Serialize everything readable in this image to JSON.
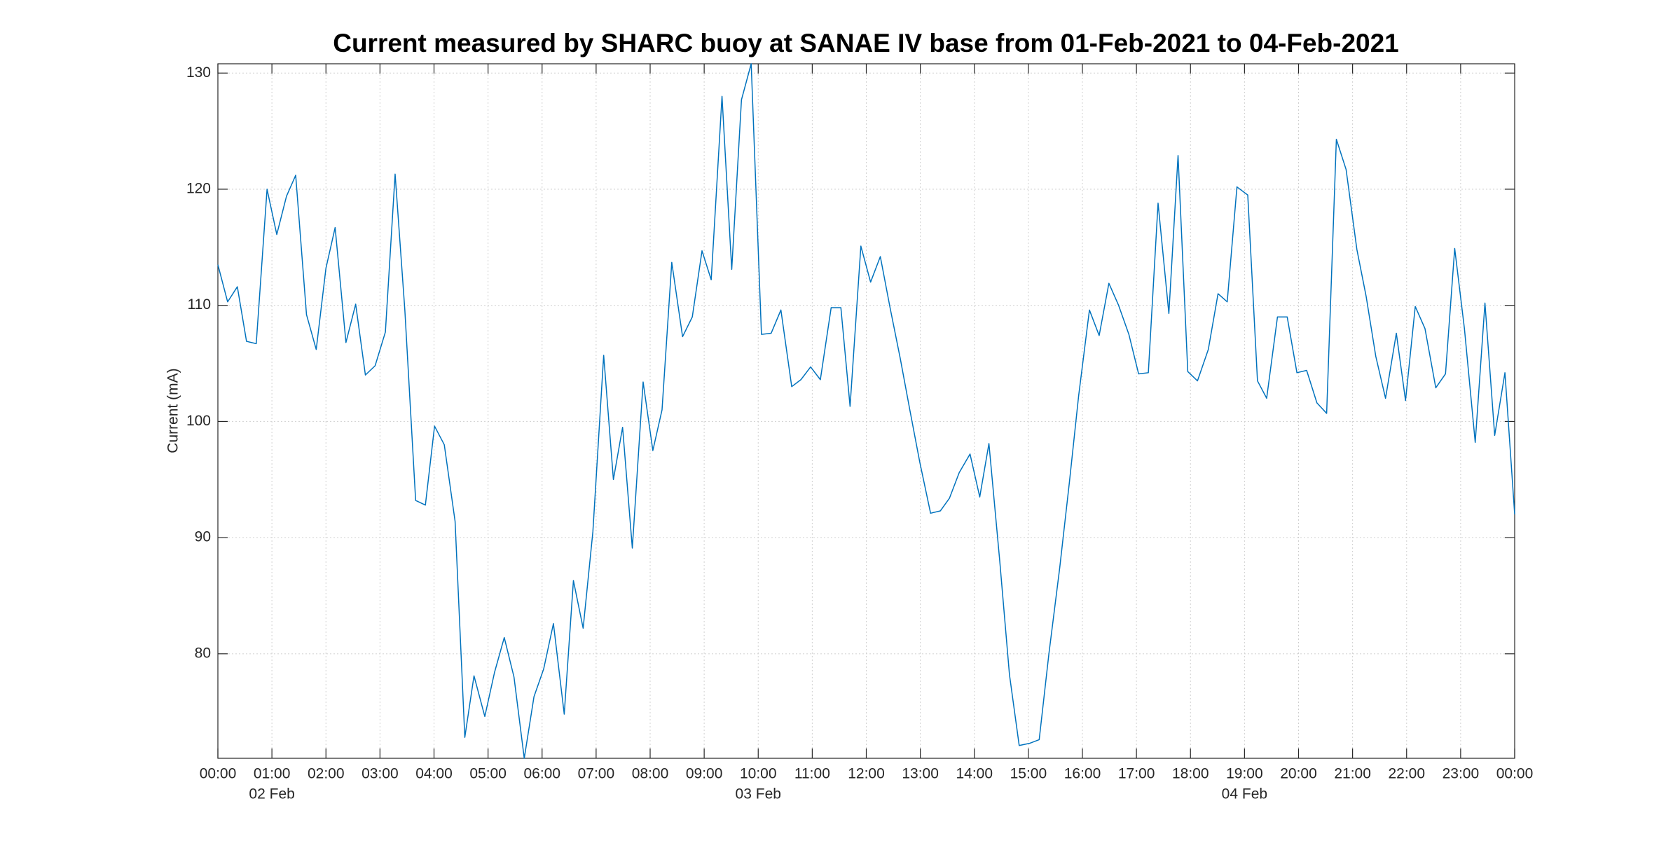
{
  "chart_data": {
    "type": "line",
    "title": "Current measured by SHARC buoy at SANAE IV base from 01-Feb-2021 to 04-Feb-2021",
    "y_label": "Current (mA)",
    "xlim": [
      0,
      24
    ],
    "ylim": [
      71,
      130.8
    ],
    "yticks": [
      80,
      90,
      100,
      110,
      120,
      130
    ],
    "xticks": [
      {
        "value": 0,
        "label": "00:00"
      },
      {
        "value": 1,
        "label": "01:00"
      },
      {
        "value": 2,
        "label": "02:00"
      },
      {
        "value": 3,
        "label": "03:00"
      },
      {
        "value": 4,
        "label": "04:00"
      },
      {
        "value": 5,
        "label": "05:00"
      },
      {
        "value": 6,
        "label": "06:00"
      },
      {
        "value": 7,
        "label": "07:00"
      },
      {
        "value": 8,
        "label": "08:00"
      },
      {
        "value": 9,
        "label": "09:00"
      },
      {
        "value": 10,
        "label": "10:00"
      },
      {
        "value": 11,
        "label": "11:00"
      },
      {
        "value": 12,
        "label": "12:00"
      },
      {
        "value": 13,
        "label": "13:00"
      },
      {
        "value": 14,
        "label": "14:00"
      },
      {
        "value": 15,
        "label": "15:00"
      },
      {
        "value": 16,
        "label": "16:00"
      },
      {
        "value": 17,
        "label": "17:00"
      },
      {
        "value": 18,
        "label": "18:00"
      },
      {
        "value": 19,
        "label": "19:00"
      },
      {
        "value": 20,
        "label": "20:00"
      },
      {
        "value": 21,
        "label": "21:00"
      },
      {
        "value": 22,
        "label": "22:00"
      },
      {
        "value": 23,
        "label": "23:00"
      },
      {
        "value": 24,
        "label": "00:00"
      }
    ],
    "date_labels": [
      {
        "value": 1,
        "label": "02 Feb"
      },
      {
        "value": 10,
        "label": "03 Feb"
      },
      {
        "value": 19,
        "label": "04 Feb"
      }
    ],
    "grid": true,
    "x": [
      0,
      0.18,
      0.36,
      0.53,
      0.71,
      0.91,
      1.09,
      1.27,
      1.44,
      1.64,
      1.82,
      2.0,
      2.17,
      2.37,
      2.55,
      2.73,
      2.91,
      3.1,
      3.28,
      3.46,
      3.66,
      3.84,
      4.01,
      4.19,
      4.39,
      4.57,
      4.74,
      4.94,
      5.12,
      5.3,
      5.48,
      5.67,
      5.85,
      6.03,
      6.21,
      6.41,
      6.58,
      6.76,
      6.94,
      7.14,
      7.32,
      7.49,
      7.67,
      7.87,
      8.05,
      8.22,
      8.4,
      8.6,
      8.78,
      8.96,
      9.13,
      9.33,
      9.51,
      9.69,
      9.87,
      10.06,
      10.24,
      10.42,
      10.62,
      10.79,
      10.97,
      11.15,
      11.35,
      11.53,
      11.7,
      11.9,
      12.08,
      12.26,
      12.44,
      12.63,
      12.81,
      12.99,
      13.19,
      13.37,
      13.54,
      13.72,
      13.92,
      14.1,
      14.27,
      14.47,
      14.65,
      14.83,
      15.03,
      15.2,
      15.38,
      15.58,
      15.76,
      15.93,
      16.13,
      16.31,
      16.49,
      16.67,
      16.86,
      17.04,
      17.22,
      17.4,
      17.6,
      17.77,
      17.95,
      18.13,
      18.33,
      18.51,
      18.68,
      18.86,
      19.06,
      19.24,
      19.41,
      19.61,
      19.79,
      19.97,
      20.15,
      20.34,
      20.52,
      20.7,
      20.88,
      21.08,
      21.25,
      21.43,
      21.61,
      21.81,
      21.98,
      22.16,
      22.34,
      22.54,
      22.72,
      22.89,
      23.07,
      23.27,
      23.45,
      23.63,
      23.82,
      24.0
    ],
    "series": [
      {
        "name": "Current",
        "color": "#0072bd",
        "values": [
          113.5,
          110.3,
          111.6,
          106.9,
          106.7,
          120,
          116.1,
          119.4,
          121.2,
          109.2,
          106.2,
          113.2,
          116.7,
          106.8,
          110.1,
          104,
          104.8,
          107.7,
          121.3,
          109.6,
          93.2,
          92.8,
          99.6,
          98,
          91.4,
          72.8,
          78.1,
          74.6,
          78.4,
          81.4,
          78,
          71,
          76.3,
          78.7,
          82.6,
          74.8,
          86.3,
          82.2,
          90.5,
          105.7,
          95,
          99.5,
          89.1,
          103.4,
          97.5,
          101,
          113.7,
          107.3,
          109,
          114.7,
          112.2,
          128,
          113.1,
          127.7,
          130.8,
          107.5,
          107.6,
          109.6,
          103,
          103.6,
          104.7,
          103.6,
          109.8,
          109.8,
          101.3,
          115.1,
          112,
          114.2,
          109.8,
          105.4,
          100.9,
          96.5,
          92.1,
          92.3,
          93.4,
          95.6,
          97.2,
          93.5,
          98.1,
          88,
          78.2,
          72.1,
          72.3,
          72.6,
          80,
          87.4,
          94.8,
          102.2,
          109.6,
          107.4,
          111.9,
          110,
          107.5,
          104.1,
          104.2,
          118.8,
          109.3,
          122.9,
          104.3,
          103.5,
          106.2,
          111,
          110.3,
          120.2,
          119.5,
          103.5,
          102,
          109,
          109,
          104.2,
          104.4,
          101.6,
          100.7,
          124.3,
          121.7,
          114.8,
          110.8,
          105.6,
          102,
          107.6,
          101.8,
          109.9,
          108,
          102.9,
          104.1,
          114.9,
          108,
          98.2,
          110.2,
          98.8,
          104.2,
          92
        ]
      }
    ]
  }
}
